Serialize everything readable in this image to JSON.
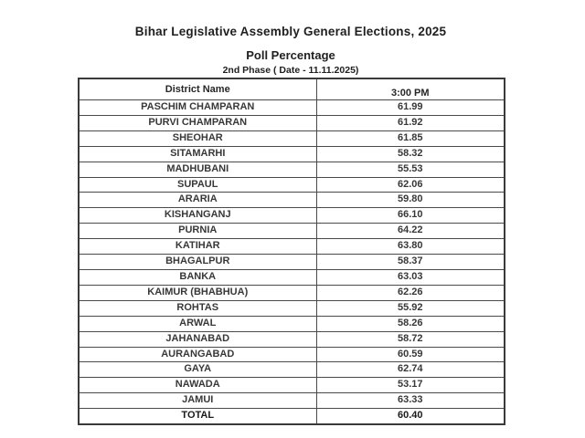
{
  "page": {
    "title": "Bihar Legislative Assembly General Elections, 2025",
    "subtitle": "Poll Percentage",
    "phase_line": "2nd Phase ( Date - 11.11.2025)"
  },
  "colors": {
    "heading_text": "#1f1f1f",
    "table_text": "#383838",
    "border": "#4a4a4a",
    "background": "#ffffff"
  },
  "table": {
    "columns": [
      "District Name",
      "3:00 PM"
    ],
    "rows": [
      {
        "district": "PASCHIM CHAMPARAN",
        "value": "61.99",
        "is_total": false
      },
      {
        "district": "PURVI CHAMPARAN",
        "value": "61.92",
        "is_total": false
      },
      {
        "district": "SHEOHAR",
        "value": "61.85",
        "is_total": false
      },
      {
        "district": "SITAMARHI",
        "value": "58.32",
        "is_total": false
      },
      {
        "district": "MADHUBANI",
        "value": "55.53",
        "is_total": false
      },
      {
        "district": "SUPAUL",
        "value": "62.06",
        "is_total": false
      },
      {
        "district": "ARARIA",
        "value": "59.80",
        "is_total": false
      },
      {
        "district": "KISHANGANJ",
        "value": "66.10",
        "is_total": false
      },
      {
        "district": "PURNIA",
        "value": "64.22",
        "is_total": false
      },
      {
        "district": "KATIHAR",
        "value": "63.80",
        "is_total": false
      },
      {
        "district": "BHAGALPUR",
        "value": "58.37",
        "is_total": false
      },
      {
        "district": "BANKA",
        "value": "63.03",
        "is_total": false
      },
      {
        "district": "KAIMUR (BHABHUA)",
        "value": "62.26",
        "is_total": false
      },
      {
        "district": "ROHTAS",
        "value": "55.92",
        "is_total": false
      },
      {
        "district": "ARWAL",
        "value": "58.26",
        "is_total": false
      },
      {
        "district": "JAHANABAD",
        "value": "58.72",
        "is_total": false
      },
      {
        "district": "AURANGABAD",
        "value": "60.59",
        "is_total": false
      },
      {
        "district": "GAYA",
        "value": "62.74",
        "is_total": false
      },
      {
        "district": "NAWADA",
        "value": "53.17",
        "is_total": false
      },
      {
        "district": "JAMUI",
        "value": "63.33",
        "is_total": false
      },
      {
        "district": "TOTAL",
        "value": "60.40",
        "is_total": true
      }
    ]
  }
}
